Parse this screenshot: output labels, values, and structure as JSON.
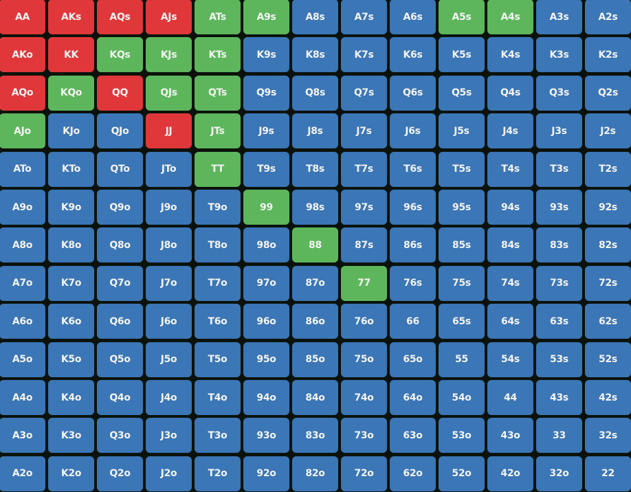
{
  "colors": {
    "r": "#e0373a",
    "g": "#5db65c",
    "b": "#3b76b6"
  },
  "grid": [
    [
      "AA",
      "AKs",
      "AQs",
      "AJs",
      "ATs",
      "A9s",
      "A8s",
      "A7s",
      "A6s",
      "A5s",
      "A4s",
      "A3s",
      "A2s"
    ],
    [
      "AKo",
      "KK",
      "KQs",
      "KJs",
      "KTs",
      "K9s",
      "K8s",
      "K7s",
      "K6s",
      "K5s",
      "K4s",
      "K3s",
      "K2s"
    ],
    [
      "AQo",
      "KQo",
      "QQ",
      "QJs",
      "QTs",
      "Q9s",
      "Q8s",
      "Q7s",
      "Q6s",
      "Q5s",
      "Q4s",
      "Q3s",
      "Q2s"
    ],
    [
      "AJo",
      "KJo",
      "QJo",
      "JJ",
      "JTs",
      "J9s",
      "J8s",
      "J7s",
      "J6s",
      "J5s",
      "J4s",
      "J3s",
      "J2s"
    ],
    [
      "ATo",
      "KTo",
      "QTo",
      "JTo",
      "TT",
      "T9s",
      "T8s",
      "T7s",
      "T6s",
      "T5s",
      "T4s",
      "T3s",
      "T2s"
    ],
    [
      "A9o",
      "K9o",
      "Q9o",
      "J9o",
      "T9o",
      "99",
      "98s",
      "97s",
      "96s",
      "95s",
      "94s",
      "93s",
      "92s"
    ],
    [
      "A8o",
      "K8o",
      "Q8o",
      "J8o",
      "T8o",
      "98o",
      "88",
      "87s",
      "86s",
      "85s",
      "84s",
      "83s",
      "82s"
    ],
    [
      "A7o",
      "K7o",
      "Q7o",
      "J7o",
      "T7o",
      "97o",
      "87o",
      "77",
      "76s",
      "75s",
      "74s",
      "73s",
      "72s"
    ],
    [
      "A6o",
      "K6o",
      "Q6o",
      "J6o",
      "T6o",
      "96o",
      "86o",
      "76o",
      "66",
      "65s",
      "64s",
      "63s",
      "62s"
    ],
    [
      "A5o",
      "K5o",
      "Q5o",
      "J5o",
      "T5o",
      "95o",
      "85o",
      "75o",
      "65o",
      "55",
      "54s",
      "53s",
      "52s"
    ],
    [
      "A4o",
      "K4o",
      "Q4o",
      "J4o",
      "T4o",
      "94o",
      "84o",
      "74o",
      "64o",
      "54o",
      "44",
      "43s",
      "42s"
    ],
    [
      "A3o",
      "K3o",
      "Q3o",
      "J3o",
      "T3o",
      "93o",
      "83o",
      "73o",
      "63o",
      "53o",
      "43o",
      "33",
      "32s"
    ],
    [
      "A2o",
      "K2o",
      "Q2o",
      "J2o",
      "T2o",
      "92o",
      "82o",
      "72o",
      "62o",
      "52o",
      "42o",
      "32o",
      "22"
    ]
  ],
  "cell_colors": [
    "rrrrggbbbggbb",
    "rrgggbbbbbbbb",
    "rgrggbbbbbbbb",
    "gbbrgbbbbbbbb",
    "bbbbgbbbbbbbb",
    "bbbbbgbbbbbbb",
    "bbbbbbgbbbbbb",
    "bbbbbbbgbbbbb",
    "bbbbbbbbbbbbb",
    "bbbbbbbbbbbbb",
    "bbbbbbbbbbbbb",
    "bbbbbbbbbbbbb",
    "bbbbbbbbbbbbb"
  ]
}
